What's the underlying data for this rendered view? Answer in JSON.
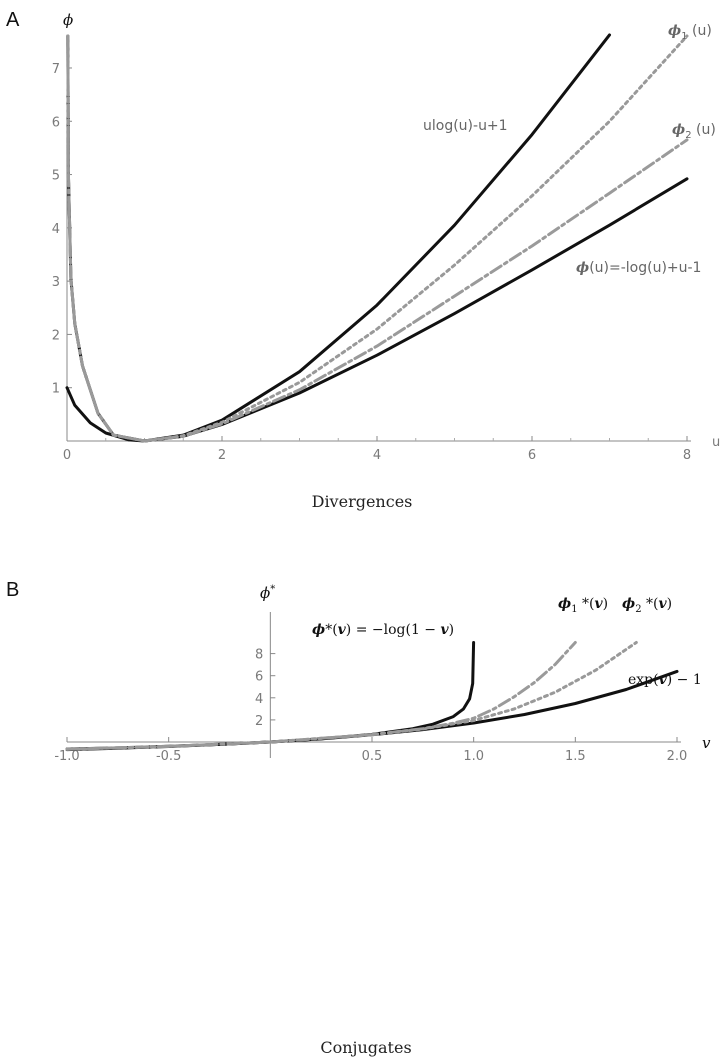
{
  "chart_data": [
    {
      "panel": "A",
      "type": "line",
      "caption": "Divergences",
      "xlabel": "u",
      "ylabel": "ϕ",
      "xlim": [
        0,
        8
      ],
      "ylim": [
        0,
        7.6
      ],
      "x_ticks": [
        0,
        2,
        4,
        6,
        8
      ],
      "y_ticks": [
        1,
        2,
        3,
        4,
        5,
        6,
        7
      ],
      "series": [
        {
          "label": "ulog(u)-u+1",
          "style": "solid-black",
          "x": [
            0,
            0.1,
            0.3,
            0.5,
            0.8,
            1,
            1.5,
            2,
            3,
            4,
            5,
            6,
            7
          ],
          "y": [
            1,
            0.67,
            0.34,
            0.15,
            0.02,
            0,
            0.11,
            0.39,
            1.3,
            2.55,
            4.05,
            5.75,
            7.62
          ]
        },
        {
          "label": "ϕ(u)=-log(u)+u-1",
          "style": "solid-black",
          "x": [
            0.01,
            0.02,
            0.05,
            0.1,
            0.2,
            0.4,
            0.6,
            1,
            1.5,
            2,
            3,
            4,
            5,
            6,
            7,
            8
          ],
          "y": [
            7.6,
            4.93,
            3.05,
            2.2,
            1.41,
            0.52,
            0.11,
            0,
            0.09,
            0.31,
            0.9,
            1.61,
            2.39,
            3.21,
            4.05,
            4.92
          ]
        },
        {
          "label": "ϕ1(u)",
          "style": "dotted-gray",
          "x": [
            0.01,
            0.02,
            0.05,
            0.1,
            0.2,
            0.4,
            0.6,
            1,
            1.5,
            2,
            3,
            4,
            5,
            6,
            7,
            8
          ],
          "y": [
            7.6,
            4.93,
            3.05,
            2.2,
            1.41,
            0.52,
            0.11,
            0,
            0.1,
            0.35,
            1.1,
            2.1,
            3.3,
            4.6,
            6.0,
            7.6
          ]
        },
        {
          "label": "ϕ2(u)",
          "style": "dashed-gray",
          "x": [
            0.01,
            0.02,
            0.05,
            0.1,
            0.2,
            0.4,
            0.6,
            1,
            1.5,
            2,
            3,
            4,
            5,
            6,
            7,
            8
          ],
          "y": [
            7.6,
            4.93,
            3.05,
            2.2,
            1.41,
            0.52,
            0.11,
            0,
            0.09,
            0.32,
            0.96,
            1.78,
            2.72,
            3.66,
            4.65,
            5.65
          ]
        }
      ],
      "annotations": [
        "ϕ1 (u)",
        "ulog(u)-u+1",
        "ϕ2 (u)",
        "ϕ(u)=-log(u)+u-1"
      ]
    },
    {
      "panel": "B",
      "type": "line",
      "caption": "Conjugates",
      "xlabel": "v",
      "ylabel": "ϕ*",
      "xlim": [
        -1.0,
        2.0
      ],
      "ylim": [
        -0.7,
        9
      ],
      "x_ticks": [
        "-1.0",
        "-0.5",
        "0.5",
        "1.0",
        "1.5",
        "2.0"
      ],
      "y_ticks": [
        2,
        4,
        6,
        8
      ],
      "series": [
        {
          "label": "ϕ*(v) = −log(1 − v)",
          "style": "solid-black",
          "x": [
            -1.0,
            -0.75,
            -0.5,
            -0.25,
            0,
            0.25,
            0.5,
            0.7,
            0.8,
            0.9,
            0.95,
            0.98,
            0.995,
            0.9999
          ],
          "y": [
            -0.69,
            -0.56,
            -0.41,
            -0.22,
            0,
            0.29,
            0.69,
            1.2,
            1.61,
            2.3,
            3.0,
            3.91,
            5.3,
            9.0
          ]
        },
        {
          "label": "exp(v) − 1",
          "style": "solid-black",
          "x": [
            -1.0,
            -0.75,
            -0.5,
            -0.25,
            0,
            0.25,
            0.5,
            0.75,
            1.0,
            1.25,
            1.5,
            1.75,
            2.0
          ],
          "y": [
            -0.63,
            -0.53,
            -0.39,
            -0.22,
            0,
            0.28,
            0.65,
            1.12,
            1.72,
            2.49,
            3.48,
            4.75,
            6.39
          ]
        },
        {
          "label": "ϕ1*(v)",
          "style": "dashed-gray",
          "x": [
            -1.0,
            -0.5,
            0,
            0.5,
            0.75,
            0.9,
            1.0,
            1.1,
            1.2,
            1.3,
            1.4,
            1.5
          ],
          "y": [
            -0.66,
            -0.4,
            0,
            0.67,
            1.2,
            1.7,
            2.15,
            3.0,
            4.1,
            5.4,
            7.0,
            9.0
          ]
        },
        {
          "label": "ϕ2*(v)",
          "style": "dotted-gray",
          "x": [
            -1.0,
            -0.5,
            0,
            0.5,
            0.75,
            1.0,
            1.2,
            1.4,
            1.6,
            1.8
          ],
          "y": [
            -0.65,
            -0.39,
            0,
            0.66,
            1.18,
            1.95,
            3.0,
            4.5,
            6.5,
            9.0
          ]
        }
      ],
      "annotations": [
        "ϕ1 *(v)",
        "ϕ2 *(v)",
        "exp(v) − 1"
      ]
    }
  ],
  "labels": {
    "panel_a": "A",
    "panel_b": "B",
    "a_ylabel": "ϕ",
    "a_xlabel": "u",
    "a_caption": "Divergences",
    "a_phi1": "ϕ1 (u)",
    "a_phi1_main": "ϕ",
    "a_phi1_sub": "1",
    "a_phi1_rest": " (u)",
    "a_phi2_main": "ϕ",
    "a_phi2_sub": "2",
    "a_phi2_rest": " (u)",
    "a_ulog": "ulog(u)-u+1",
    "a_phi_main": "ϕ",
    "a_phi_rest": "(u)=-log(u)+u-1",
    "b_ylabel_main": "ϕ",
    "b_ylabel_sup": "*",
    "b_xlabel": "v",
    "b_caption": "Conjugates",
    "b_phistar_main": "ϕ",
    "b_phistar_rest": "*(",
    "b_phistar_v": "v",
    "b_phistar_tail": ") = −log(1 − ",
    "b_phistar_v2": "v",
    "b_phistar_end": ")",
    "b_phi1_main": "ϕ",
    "b_phi1_sub": "1",
    "b_phi1_rest": " *(",
    "b_phi1_v": "v",
    "b_phi1_end": ")",
    "b_phi2_main": "ϕ",
    "b_phi2_sub": "2",
    "b_phi2_rest": " *(",
    "b_phi2_v": "v",
    "b_phi2_end": ")",
    "b_exp": "exp(",
    "b_exp_v": "v",
    "b_exp_end": ") − 1"
  }
}
